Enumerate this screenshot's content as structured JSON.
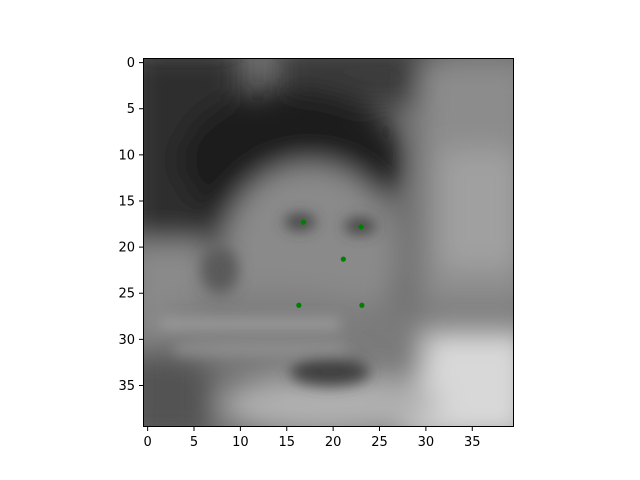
{
  "chart_data": {
    "type": "scatter",
    "background": "grayscale image (blurred face photograph, 40x40)",
    "title": "",
    "xlabel": "",
    "ylabel": "",
    "xlim": [
      -0.5,
      39.5
    ],
    "ylim": [
      39.5,
      -0.5
    ],
    "y_inverted": true,
    "grid": false,
    "xticks": [
      0,
      5,
      10,
      15,
      20,
      25,
      30,
      35
    ],
    "yticks": [
      0,
      5,
      10,
      15,
      20,
      25,
      30,
      35
    ],
    "series": [
      {
        "color": "#008000",
        "points": [
          {
            "x": 16.8,
            "y": 17.3
          },
          {
            "x": 23.0,
            "y": 17.8
          },
          {
            "x": 21.1,
            "y": 21.3
          },
          {
            "x": 16.3,
            "y": 26.3
          },
          {
            "x": 23.1,
            "y": 26.3
          }
        ]
      }
    ]
  }
}
